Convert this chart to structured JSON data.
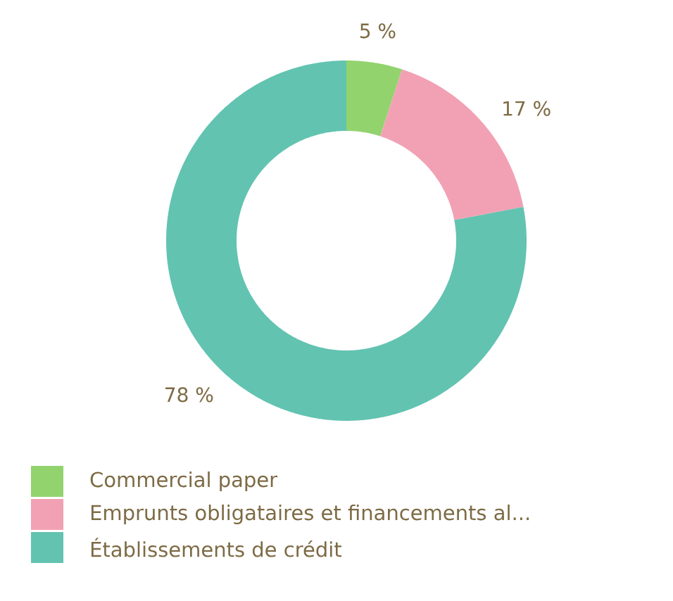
{
  "chart_data": {
    "type": "donut",
    "categories": [
      "Commercial paper",
      "Emprunts obligataires et financements al...",
      "Établissements de crédit"
    ],
    "values": [
      5,
      17,
      78
    ],
    "colors": [
      "#92d36e",
      "#f2a1b4",
      "#62c3b1"
    ],
    "value_labels": [
      "5 %",
      "17 %",
      "78 %"
    ],
    "legend": "bottom left"
  }
}
